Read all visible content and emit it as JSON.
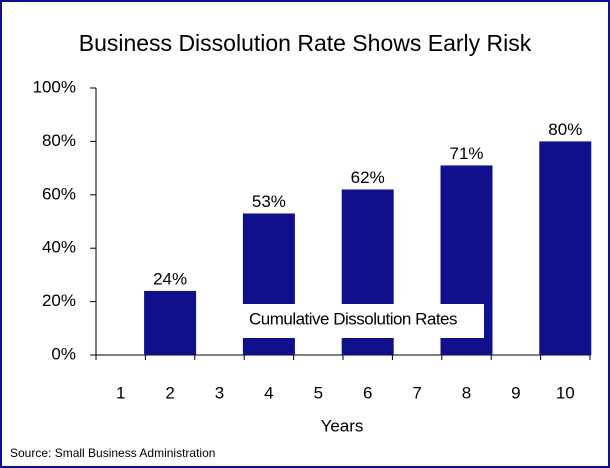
{
  "chart_data": {
    "type": "bar",
    "title": "Business Dissolution Rate Shows Early Risk",
    "x_label": "Years",
    "annotation": "Cumulative Dissolution Rates",
    "source": "Source:  Small Business Administration",
    "categories": [
      "1",
      "2",
      "3",
      "4",
      "5",
      "6",
      "7",
      "8",
      "9",
      "10"
    ],
    "values": [
      null,
      24,
      null,
      53,
      null,
      62,
      null,
      71,
      null,
      80
    ],
    "value_labels": [
      null,
      "24%",
      null,
      "53%",
      null,
      "62%",
      null,
      "71%",
      null,
      "80%"
    ],
    "color": "#10108c",
    "ylim": [
      0,
      100
    ],
    "yticks": [
      {
        "value": 0,
        "label": "0%"
      },
      {
        "value": 20,
        "label": "20%"
      },
      {
        "value": 40,
        "label": "40%"
      },
      {
        "value": 60,
        "label": "60%"
      },
      {
        "value": 80,
        "label": "80%"
      },
      {
        "value": 100,
        "label": "100%"
      }
    ],
    "grid": false
  }
}
